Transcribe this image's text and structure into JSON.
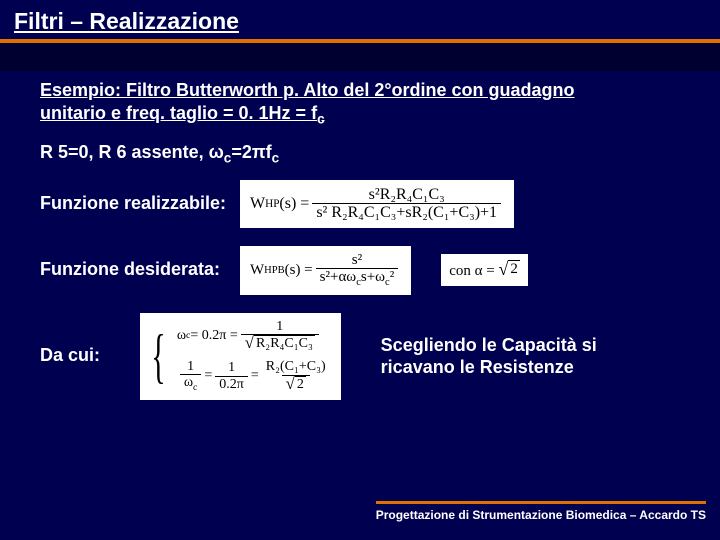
{
  "title": "Filtri – Realizzazione",
  "heading1_line1": "Esempio:   Filtro Butterworth p. Alto del 2°ordine con guadagno",
  "heading1_line2": "unitario e freq. taglio = 0. 1Hz = f",
  "heading1_sub": "c",
  "heading2_a": "R 5=0, R 6 assente, ω",
  "heading2_sub1": "c",
  "heading2_b": "=2πf",
  "heading2_sub2": "c",
  "label_realizzabile": "Funzione realizzabile:",
  "label_desiderata": "Funzione desiderata:",
  "label_dacui": "Da cui:",
  "conclusion_l1": "Scegliendo le Capacità si",
  "conclusion_l2": "ricavano le Resistenze",
  "footer": "Progettazione di Strumentazione Biomedica – Accardo TS",
  "f1": {
    "lhs": "W",
    "lhs_sub": "HP",
    "lhs_arg": "(s) = ",
    "num": "s²R₂R₄C₁C₃",
    "den": "s² R₂R₄C₁C₃+sR₂(C₁+C₃)+1"
  },
  "f2": {
    "lhs": "W",
    "lhs_sub": "HPB",
    "lhs_arg": "(s) = ",
    "num": "s²",
    "den_a": "s²+αω",
    "den_b": "s+ω",
    "den_c": "²",
    "alpha_pre": "con α = ",
    "alpha_val": "2"
  },
  "f3": {
    "l1_lhs": "ω",
    "l1_mid": " = 0.2π = ",
    "l1_num": "1",
    "l1_den": "R₂R₄C₁C₃",
    "l2_num": "1",
    "l2_den": "ω",
    "l2_mid": " = ",
    "l2_num2": "1",
    "l2_den2": "0.2π",
    "l2_eq": " = ",
    "l2_num3": "R₂(C₁+C₃)",
    "l2_den3": "2"
  }
}
